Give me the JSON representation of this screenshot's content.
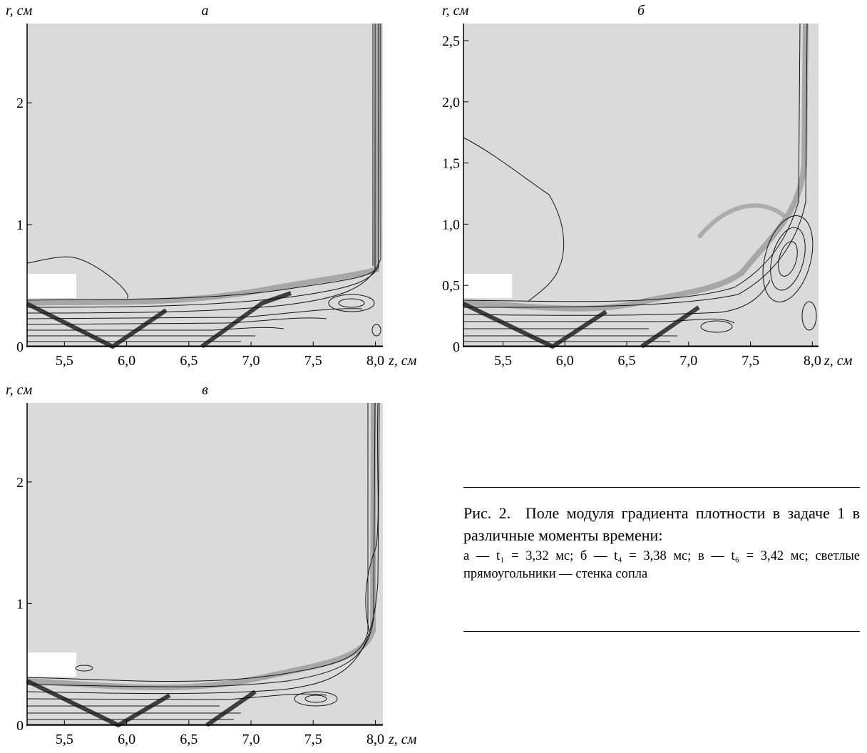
{
  "figure": {
    "panels": [
      {
        "label": "а",
        "r_axis_label": "r, см",
        "z_axis_label": "z, см",
        "xlim": [
          5.2,
          8.06
        ],
        "ylim": [
          0,
          2.65
        ],
        "xticks": [
          {
            "value": 5.5,
            "label": "5,5"
          },
          {
            "value": 6.0,
            "label": "6,0"
          },
          {
            "value": 6.5,
            "label": "6,5"
          },
          {
            "value": 7.0,
            "label": "7,0"
          },
          {
            "value": 7.5,
            "label": "7,5"
          },
          {
            "value": 8.0,
            "label": "8,0"
          }
        ],
        "yticks": [
          0,
          1,
          2
        ]
      },
      {
        "label": "б",
        "r_axis_label": "r, см",
        "z_axis_label": "z, см",
        "xlim": [
          5.18,
          8.05
        ],
        "ylim": [
          0,
          2.64
        ],
        "xticks": [
          {
            "value": 5.5,
            "label": "5,5"
          },
          {
            "value": 6.0,
            "label": "6,0"
          },
          {
            "value": 6.5,
            "label": "6,5"
          },
          {
            "value": 7.0,
            "label": "7,0"
          },
          {
            "value": 7.5,
            "label": "7,5"
          },
          {
            "value": 8.0,
            "label": "8,0"
          }
        ],
        "yticks": [
          0,
          {
            "value": 0.5,
            "label": "0,5"
          },
          {
            "value": 1.0,
            "label": "1,0"
          },
          {
            "value": 1.5,
            "label": "1,5"
          },
          {
            "value": 2.0,
            "label": "2,0"
          },
          {
            "value": 2.5,
            "label": "2,5"
          }
        ]
      },
      {
        "label": "в",
        "r_axis_label": "r, см",
        "z_axis_label": "z, см",
        "xlim": [
          5.2,
          8.06
        ],
        "ylim": [
          0,
          2.65
        ],
        "xticks": [
          {
            "value": 5.5,
            "label": "5,5"
          },
          {
            "value": 6.0,
            "label": "6,0"
          },
          {
            "value": 6.5,
            "label": "6,5"
          },
          {
            "value": 7.0,
            "label": "7,0"
          },
          {
            "value": 7.5,
            "label": "7,5"
          },
          {
            "value": 8.0,
            "label": "8,0"
          }
        ],
        "yticks": [
          0,
          1,
          2
        ]
      }
    ],
    "caption": {
      "number": "Рис. 2.",
      "text": "Поле модуля градиента плотности в задаче 1 в различные моменты времени:",
      "details": "а — t₁ = 3,32 мс; б — t₄ = 3,38 мс; в — t₆ = 3,42 мс; светлые прямоугольники — стенка сопла"
    }
  }
}
